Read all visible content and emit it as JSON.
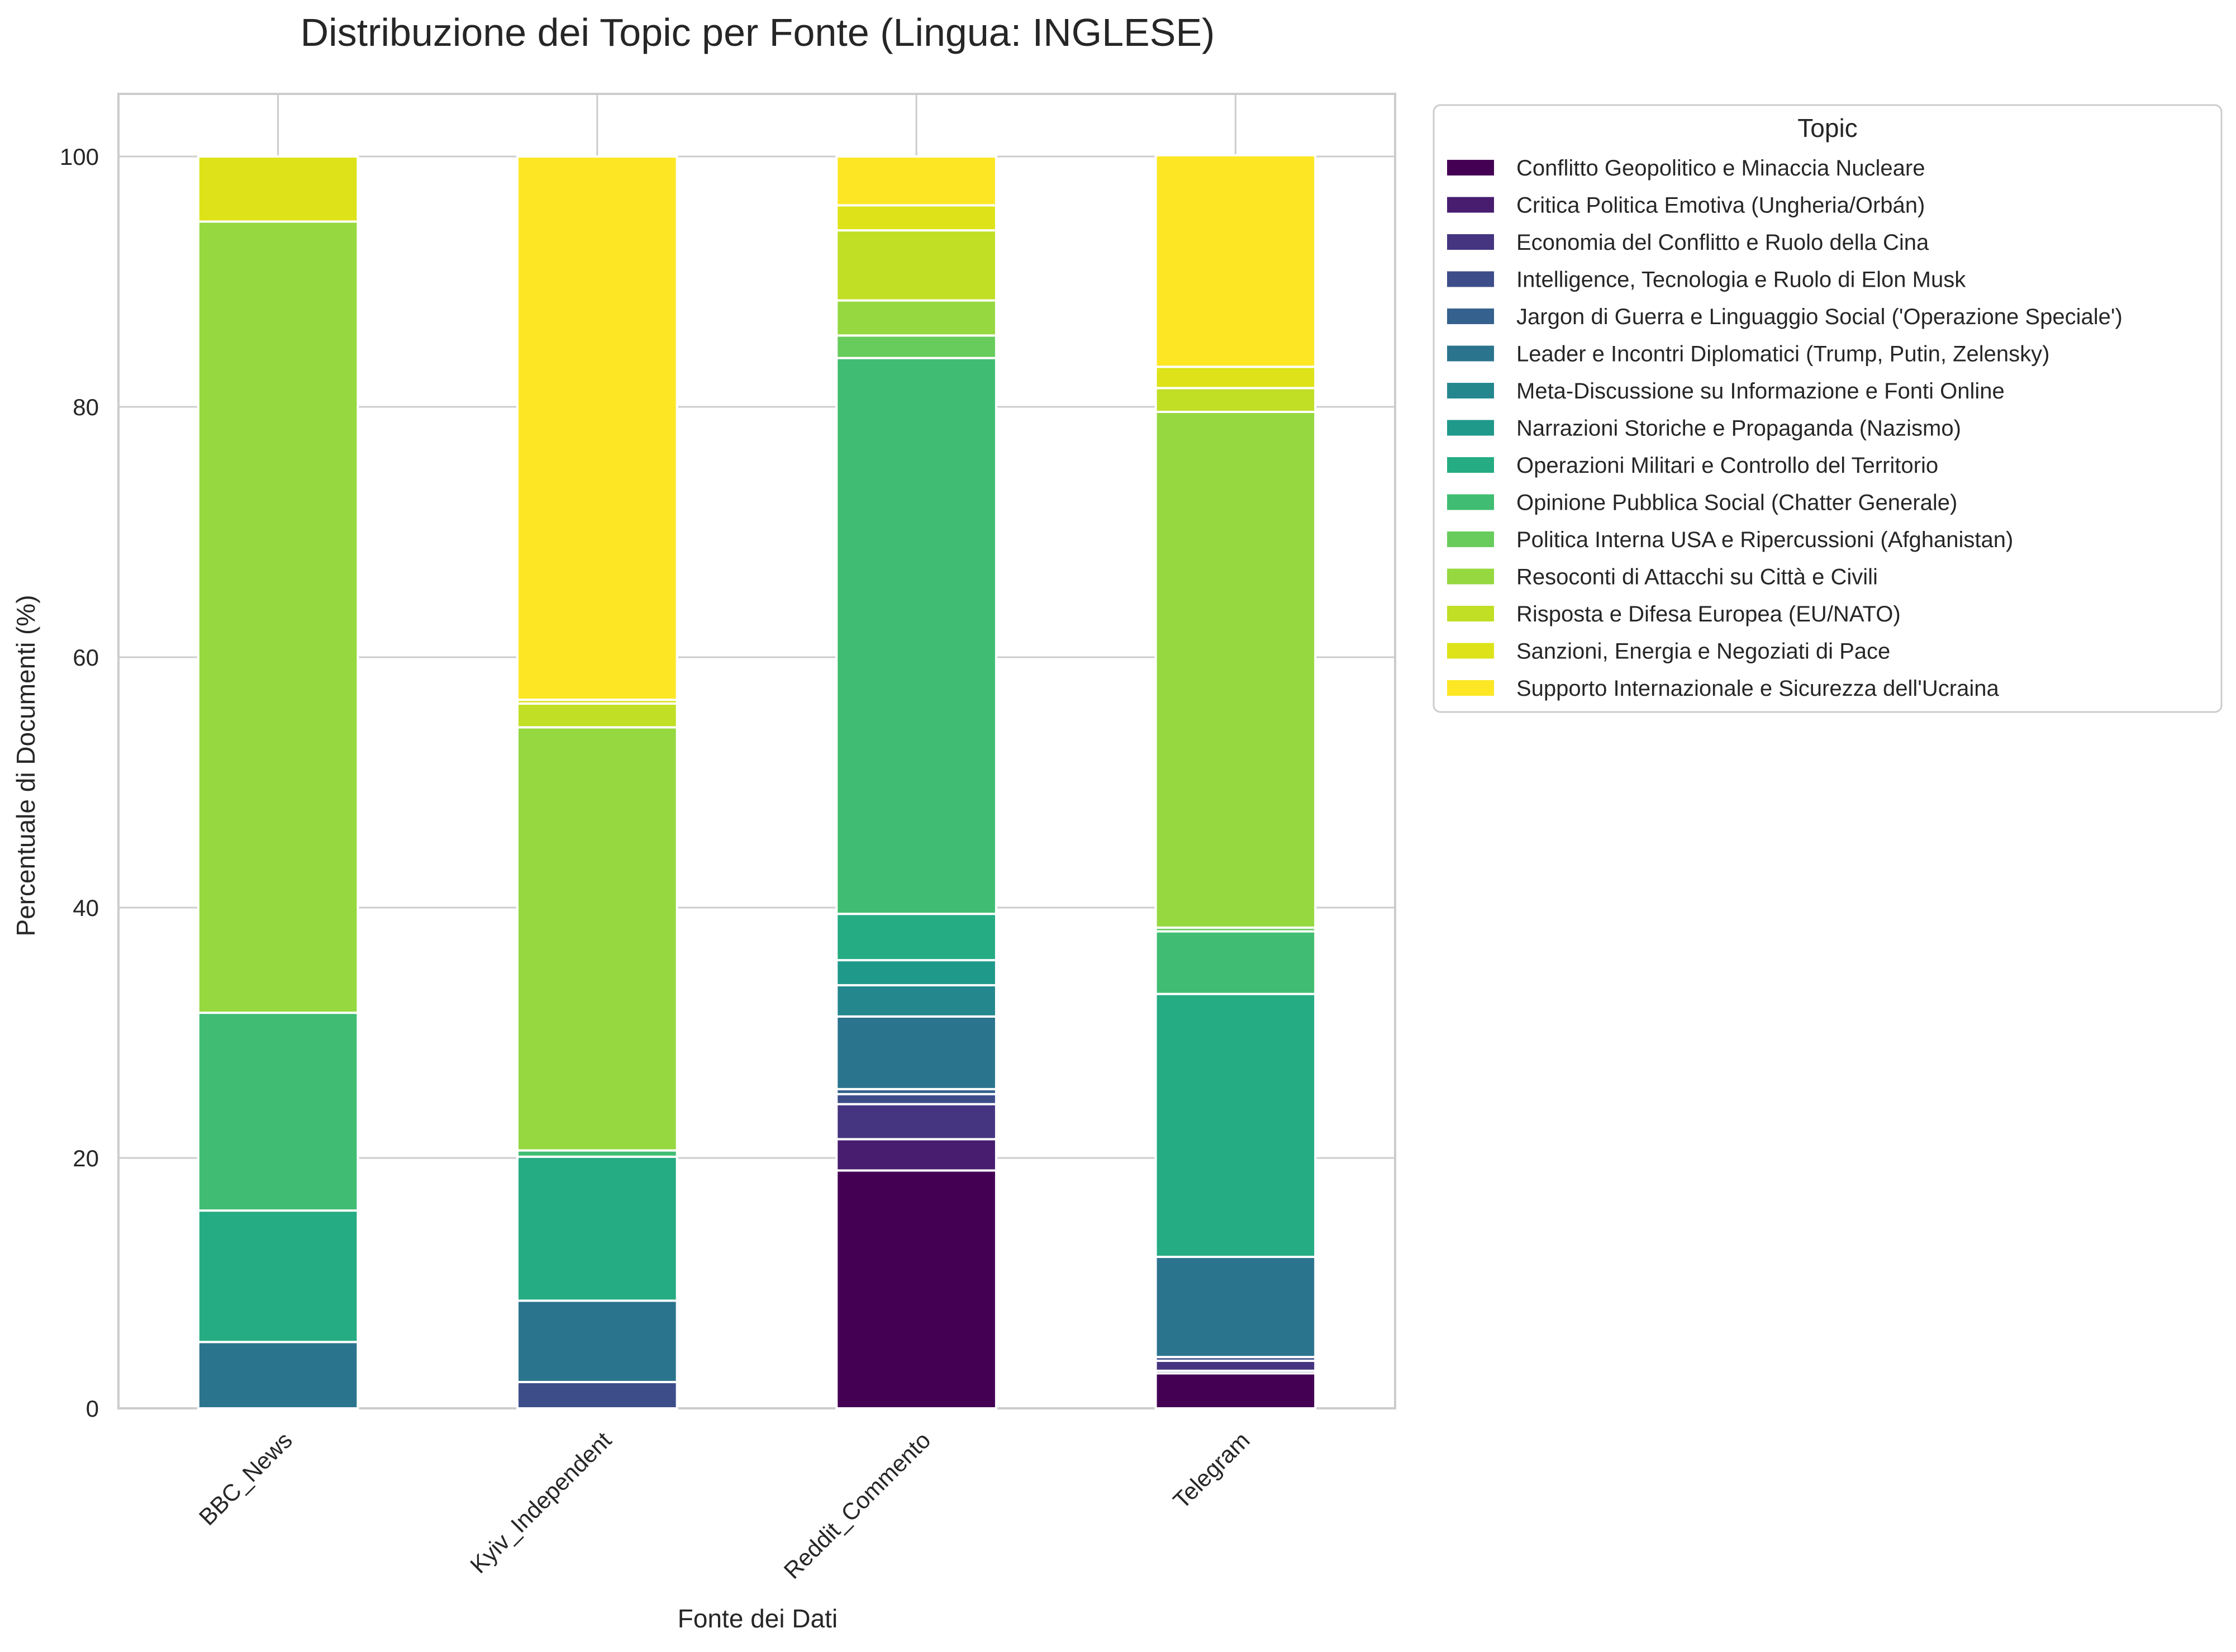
{
  "chart_data": {
    "type": "bar",
    "stacked": true,
    "title": "Distribuzione dei Topic per Fonte (Lingua: INGLESE)",
    "xlabel": "Fonte dei Dati",
    "ylabel": "Percentuale di Documenti (%)",
    "ylim": [
      0,
      105
    ],
    "yticks": [
      0,
      20,
      40,
      60,
      80,
      100
    ],
    "grid": true,
    "legend_title": "Topic",
    "legend_position": "outside-right",
    "categories": [
      "BBC_News",
      "Kyiv_Independent",
      "Reddit_Commento",
      "Telegram"
    ],
    "series": [
      {
        "name": "Conflitto Geopolitico e Minaccia Nucleare",
        "color": "#440154",
        "values": [
          0,
          0,
          19.0,
          2.8
        ]
      },
      {
        "name": "Critica Politica Emotiva (Ungheria/Orbán)",
        "color": "#481d6f",
        "values": [
          0,
          0,
          2.5,
          0.2
        ]
      },
      {
        "name": "Economia del Conflitto e Ruolo della Cina",
        "color": "#453581",
        "values": [
          0,
          0,
          2.8,
          0.8
        ]
      },
      {
        "name": "Intelligence, Tecnologia e Ruolo di Elon Musk",
        "color": "#3d4d8a",
        "values": [
          0,
          2.1,
          0.8,
          0.3
        ]
      },
      {
        "name": "Jargon di Guerra e Linguaggio Social ('Operazione Speciale')",
        "color": "#34618d",
        "values": [
          0,
          0,
          0.4,
          0
        ]
      },
      {
        "name": "Leader e Incontri Diplomatici (Trump, Putin, Zelensky)",
        "color": "#2b748e",
        "values": [
          5.3,
          6.5,
          5.8,
          8.0
        ]
      },
      {
        "name": "Meta-Discussione su Informazione e Fonti Online",
        "color": "#24878e",
        "values": [
          0,
          0,
          2.5,
          0
        ]
      },
      {
        "name": "Narrazioni Storiche e Propaganda (Nazismo)",
        "color": "#1f998a",
        "values": [
          0,
          0,
          2.0,
          0
        ]
      },
      {
        "name": "Operazioni Militari e Controllo del Territorio",
        "color": "#25ac82",
        "values": [
          10.5,
          11.5,
          3.7,
          21.0
        ]
      },
      {
        "name": "Opinione Pubblica Social (Chatter Generale)",
        "color": "#40bd72",
        "values": [
          15.8,
          0.5,
          44.4,
          5.0
        ]
      },
      {
        "name": "Politica Interna USA e Ripercussioni (Afghanistan)",
        "color": "#67cc5c",
        "values": [
          0,
          0,
          1.8,
          0.3
        ]
      },
      {
        "name": "Resoconti di Attacchi su Città e Civili",
        "color": "#95d840",
        "values": [
          63.2,
          33.8,
          2.8,
          41.2
        ]
      },
      {
        "name": "Risposta e Difesa Europea (EU/NATO)",
        "color": "#c0df25",
        "values": [
          0,
          1.9,
          5.6,
          1.9
        ]
      },
      {
        "name": "Sanzioni, Energia e Negoziati di Pace",
        "color": "#dde318",
        "values": [
          5.2,
          0.3,
          2.0,
          1.7
        ]
      },
      {
        "name": "Supporto Internazionale e Sicurezza dell'Ucraina",
        "color": "#fde725",
        "values": [
          0,
          43.4,
          3.9,
          16.9
        ]
      }
    ]
  }
}
